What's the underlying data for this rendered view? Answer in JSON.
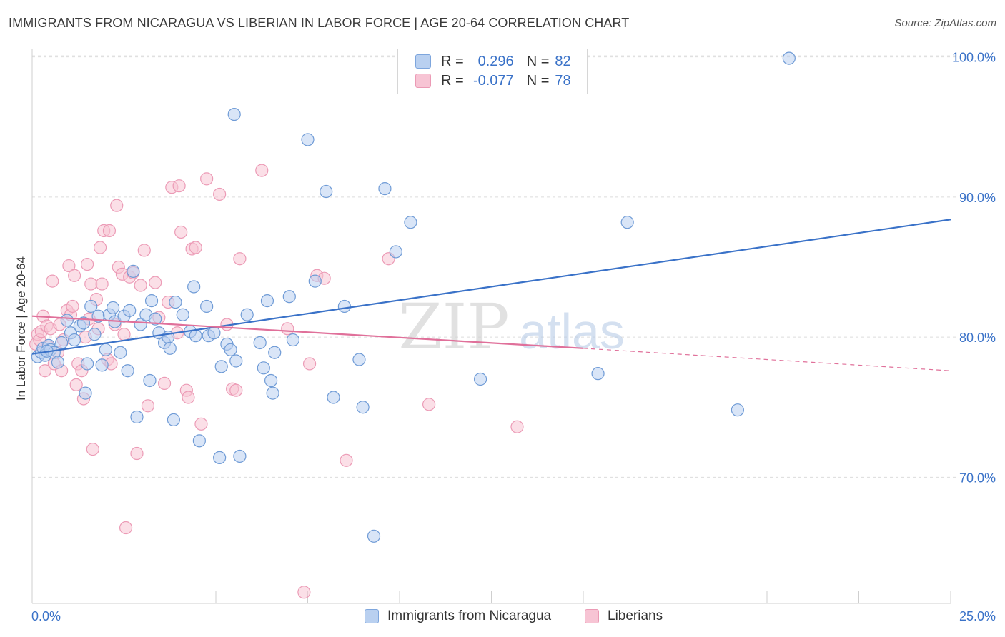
{
  "title": "IMMIGRANTS FROM NICARAGUA VS LIBERIAN IN LABOR FORCE | AGE 20-64 CORRELATION CHART",
  "source": "Source: ZipAtlas.com",
  "watermark": {
    "zip": "ZIP",
    "atlas": "atlas"
  },
  "legend": {
    "r_label": "R =",
    "n_label": "N =",
    "series1": {
      "r": "0.296",
      "n": "82"
    },
    "series2": {
      "r": "-0.077",
      "n": "78"
    }
  },
  "bottom_legend": [
    "Immigrants from Nicaragua",
    "Liberians"
  ],
  "colors": {
    "blue": "#3a72c8",
    "blue_fill": "#b9d0f0",
    "pink": "#e0709a",
    "pink_fill": "#f7c4d4",
    "axis_text": "#3a72c8"
  },
  "chart_data": {
    "type": "scatter",
    "title": "IMMIGRANTS FROM NICARAGUA VS LIBERIAN IN LABOR FORCE | AGE 20-64 CORRELATION CHART",
    "xlabel": "",
    "ylabel": "In Labor Force | Age 20-64",
    "xlim": [
      0,
      25
    ],
    "ylim": [
      61,
      101
    ],
    "x_tick_labels": [
      "0.0%",
      "25.0%"
    ],
    "y_ticks": [
      70,
      80,
      90,
      100
    ],
    "y_tick_labels": [
      "70.0%",
      "80.0%",
      "90.0%",
      "100.0%"
    ],
    "series": [
      {
        "name": "Immigrants from Nicaragua",
        "r": 0.296,
        "n": 82,
        "trend": {
          "x": [
            0,
            25
          ],
          "y": [
            78.8,
            88.4
          ]
        },
        "points": [
          [
            0.15,
            78.6
          ],
          [
            0.25,
            78.9
          ],
          [
            0.3,
            79.2
          ],
          [
            0.35,
            78.7
          ],
          [
            0.45,
            79.4
          ],
          [
            0.5,
            79.1
          ],
          [
            0.6,
            78.9
          ],
          [
            0.7,
            78.2
          ],
          [
            0.8,
            79.6
          ],
          [
            0.95,
            81.2
          ],
          [
            1.05,
            80.3
          ],
          [
            1.15,
            79.8
          ],
          [
            1.3,
            80.8
          ],
          [
            1.45,
            76.0
          ],
          [
            1.5,
            78.1
          ],
          [
            1.6,
            82.2
          ],
          [
            1.7,
            80.2
          ],
          [
            1.8,
            81.5
          ],
          [
            1.9,
            78.0
          ],
          [
            2.0,
            79.1
          ],
          [
            2.1,
            81.6
          ],
          [
            2.2,
            82.1
          ],
          [
            2.25,
            81.1
          ],
          [
            2.4,
            78.9
          ],
          [
            2.5,
            81.5
          ],
          [
            2.6,
            77.6
          ],
          [
            2.65,
            81.9
          ],
          [
            2.75,
            84.7
          ],
          [
            2.85,
            74.3
          ],
          [
            2.95,
            80.9
          ],
          [
            3.1,
            81.6
          ],
          [
            3.2,
            76.9
          ],
          [
            3.25,
            82.6
          ],
          [
            3.35,
            81.3
          ],
          [
            3.45,
            80.3
          ],
          [
            3.6,
            79.6
          ],
          [
            3.7,
            80.0
          ],
          [
            3.75,
            79.2
          ],
          [
            3.85,
            74.1
          ],
          [
            3.9,
            82.5
          ],
          [
            4.1,
            81.6
          ],
          [
            4.3,
            80.4
          ],
          [
            4.4,
            83.6
          ],
          [
            4.45,
            80.1
          ],
          [
            4.55,
            72.6
          ],
          [
            4.75,
            82.2
          ],
          [
            4.8,
            80.1
          ],
          [
            4.95,
            80.3
          ],
          [
            5.1,
            71.4
          ],
          [
            5.15,
            77.9
          ],
          [
            5.3,
            79.5
          ],
          [
            5.4,
            79.1
          ],
          [
            5.5,
            95.9
          ],
          [
            5.55,
            78.3
          ],
          [
            5.65,
            71.5
          ],
          [
            5.85,
            81.6
          ],
          [
            6.2,
            79.6
          ],
          [
            6.3,
            77.8
          ],
          [
            6.4,
            82.6
          ],
          [
            6.5,
            76.9
          ],
          [
            6.55,
            76.0
          ],
          [
            6.6,
            78.9
          ],
          [
            7.0,
            82.9
          ],
          [
            7.1,
            79.8
          ],
          [
            7.5,
            94.1
          ],
          [
            7.7,
            84.0
          ],
          [
            8.0,
            90.4
          ],
          [
            8.2,
            75.7
          ],
          [
            8.5,
            82.2
          ],
          [
            8.9,
            78.4
          ],
          [
            9.0,
            75.0
          ],
          [
            9.3,
            65.8
          ],
          [
            9.6,
            90.6
          ],
          [
            9.9,
            86.1
          ],
          [
            10.3,
            88.2
          ],
          [
            12.2,
            77.0
          ],
          [
            15.4,
            77.4
          ],
          [
            16.2,
            88.2
          ],
          [
            19.2,
            74.8
          ],
          [
            20.6,
            99.9
          ],
          [
            0.4,
            79.0
          ],
          [
            1.4,
            81.0
          ]
        ]
      },
      {
        "name": "Liberians",
        "r": -0.077,
        "n": 78,
        "trend": {
          "x": [
            0,
            15
          ],
          "y": [
            81.5,
            79.2
          ]
        },
        "trend_dashed": {
          "x": [
            15,
            25
          ],
          "y": [
            79.2,
            77.6
          ]
        },
        "points": [
          [
            0.1,
            79.5
          ],
          [
            0.15,
            80.2
          ],
          [
            0.2,
            79.8
          ],
          [
            0.25,
            80.4
          ],
          [
            0.3,
            81.5
          ],
          [
            0.35,
            77.6
          ],
          [
            0.4,
            80.8
          ],
          [
            0.5,
            80.6
          ],
          [
            0.55,
            84.0
          ],
          [
            0.6,
            78.1
          ],
          [
            0.7,
            78.9
          ],
          [
            0.75,
            80.9
          ],
          [
            0.8,
            77.6
          ],
          [
            0.85,
            79.8
          ],
          [
            0.95,
            81.9
          ],
          [
            1.0,
            85.1
          ],
          [
            1.05,
            81.6
          ],
          [
            1.1,
            82.2
          ],
          [
            1.15,
            84.4
          ],
          [
            1.2,
            76.6
          ],
          [
            1.25,
            78.1
          ],
          [
            1.35,
            77.6
          ],
          [
            1.4,
            75.6
          ],
          [
            1.45,
            80.0
          ],
          [
            1.5,
            85.2
          ],
          [
            1.55,
            81.3
          ],
          [
            1.6,
            83.8
          ],
          [
            1.65,
            72.0
          ],
          [
            1.75,
            82.7
          ],
          [
            1.8,
            80.6
          ],
          [
            1.85,
            86.4
          ],
          [
            1.9,
            83.8
          ],
          [
            1.95,
            87.6
          ],
          [
            2.05,
            78.4
          ],
          [
            2.1,
            87.6
          ],
          [
            2.15,
            78.1
          ],
          [
            2.25,
            80.9
          ],
          [
            2.3,
            89.4
          ],
          [
            2.35,
            85.0
          ],
          [
            2.45,
            84.5
          ],
          [
            2.5,
            80.2
          ],
          [
            2.55,
            66.4
          ],
          [
            2.65,
            84.3
          ],
          [
            2.75,
            84.6
          ],
          [
            2.85,
            71.7
          ],
          [
            2.95,
            83.7
          ],
          [
            3.05,
            86.2
          ],
          [
            3.15,
            75.1
          ],
          [
            3.35,
            83.9
          ],
          [
            3.45,
            81.4
          ],
          [
            3.6,
            76.7
          ],
          [
            3.7,
            82.5
          ],
          [
            3.8,
            90.7
          ],
          [
            3.95,
            80.3
          ],
          [
            4.0,
            90.8
          ],
          [
            4.05,
            87.5
          ],
          [
            4.2,
            76.2
          ],
          [
            4.25,
            75.7
          ],
          [
            4.35,
            86.3
          ],
          [
            4.45,
            86.4
          ],
          [
            4.6,
            73.8
          ],
          [
            4.75,
            91.3
          ],
          [
            5.1,
            90.2
          ],
          [
            5.3,
            80.9
          ],
          [
            5.45,
            76.3
          ],
          [
            5.55,
            76.2
          ],
          [
            5.65,
            85.6
          ],
          [
            6.25,
            91.9
          ],
          [
            6.95,
            80.6
          ],
          [
            7.4,
            61.8
          ],
          [
            7.55,
            78.1
          ],
          [
            7.75,
            84.4
          ],
          [
            7.95,
            84.2
          ],
          [
            8.55,
            71.2
          ],
          [
            9.7,
            85.6
          ],
          [
            10.8,
            75.2
          ],
          [
            13.2,
            73.6
          ],
          [
            0.45,
            79.3
          ]
        ]
      }
    ]
  }
}
